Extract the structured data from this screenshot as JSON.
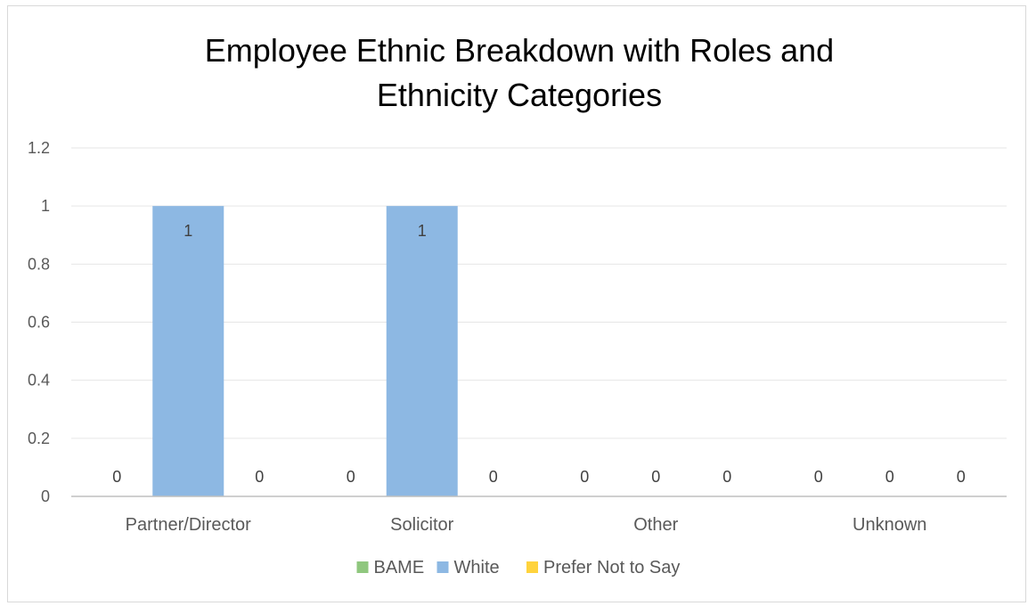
{
  "chart_data": {
    "type": "bar",
    "title_line1": "Employee Ethnic Breakdown with Roles and",
    "title_line2": "Ethnicity Categories",
    "categories": [
      "Partner/Director",
      "Solicitor",
      "Other",
      "Unknown"
    ],
    "series": [
      {
        "name": "BAME",
        "color": "#8fc77e",
        "values": [
          0,
          0,
          0,
          0
        ]
      },
      {
        "name": "White",
        "color": "#8db8e3",
        "values": [
          1,
          1,
          0,
          0
        ]
      },
      {
        "name": "Prefer Not to Say",
        "color": "#ffd33d",
        "values": [
          0,
          0,
          0,
          0
        ]
      }
    ],
    "ylim": [
      0,
      1.2
    ],
    "y_ticks": [
      "0",
      "0.2",
      "0.4",
      "0.6",
      "0.8",
      "1",
      "1.2"
    ],
    "grid": true,
    "legend_position": "bottom",
    "data_labels": true
  }
}
